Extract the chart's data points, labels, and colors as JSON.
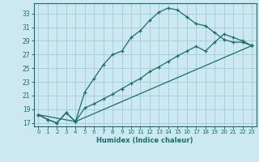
{
  "xlabel": "Humidex (Indice chaleur)",
  "bg_color": "#cce8f0",
  "grid_color": "#a0ccd8",
  "line_color": "#1a6e6a",
  "xlim": [
    -0.5,
    23.5
  ],
  "ylim": [
    16.5,
    34.5
  ],
  "yticks": [
    17,
    19,
    21,
    23,
    25,
    27,
    29,
    31,
    33
  ],
  "xticks": [
    0,
    1,
    2,
    3,
    4,
    5,
    6,
    7,
    8,
    9,
    10,
    11,
    12,
    13,
    14,
    15,
    16,
    17,
    18,
    19,
    20,
    21,
    22,
    23
  ],
  "line1_x": [
    0,
    1,
    2,
    3,
    4,
    5,
    6,
    7,
    8,
    9,
    10,
    11,
    12,
    13,
    14,
    15,
    16,
    17,
    18,
    19,
    20,
    21,
    22,
    23
  ],
  "line1_y": [
    18.2,
    17.5,
    17.0,
    18.5,
    17.2,
    21.5,
    23.5,
    25.5,
    27.0,
    27.5,
    29.5,
    30.5,
    32.0,
    33.2,
    33.8,
    33.5,
    32.5,
    31.5,
    31.2,
    30.2,
    29.2,
    28.8,
    28.8,
    28.3
  ],
  "line2_x": [
    0,
    1,
    2,
    3,
    4,
    5,
    6,
    7,
    8,
    9,
    10,
    11,
    12,
    13,
    14,
    15,
    16,
    17,
    18,
    19,
    20,
    21,
    22,
    23
  ],
  "line2_y": [
    18.2,
    17.5,
    17.0,
    18.5,
    17.2,
    19.2,
    19.8,
    20.5,
    21.2,
    22.0,
    22.8,
    23.5,
    24.5,
    25.2,
    26.0,
    26.8,
    27.5,
    28.2,
    27.5,
    28.8,
    30.0,
    29.5,
    29.0,
    28.3
  ],
  "line3_x": [
    0,
    4,
    23
  ],
  "line3_y": [
    18.2,
    17.2,
    28.3
  ]
}
